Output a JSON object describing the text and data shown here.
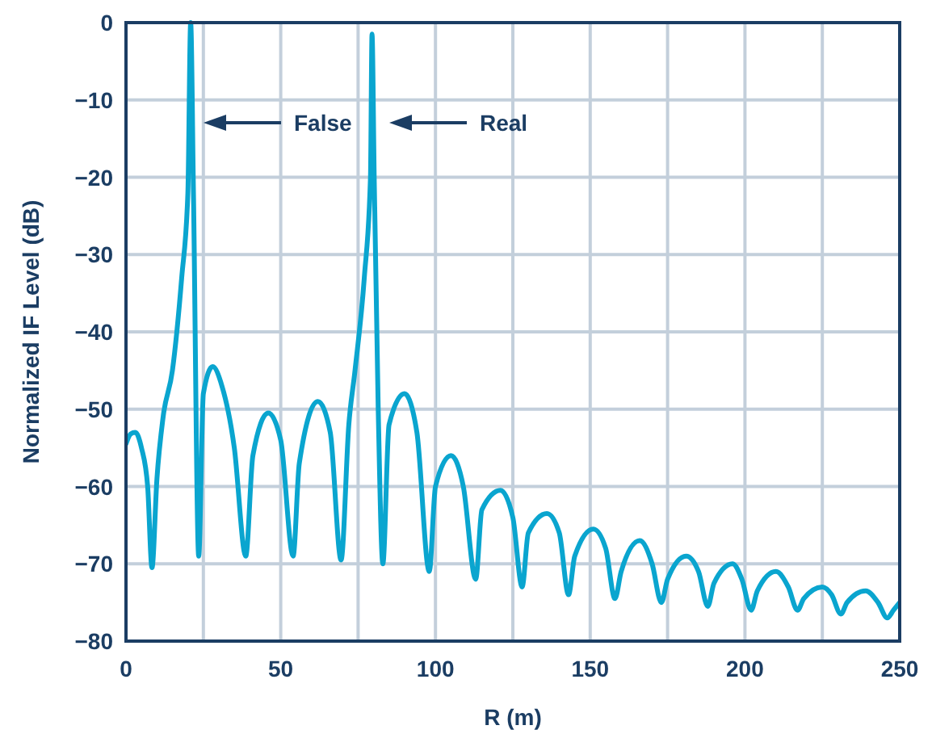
{
  "chart_data": {
    "type": "line",
    "xlabel": "R (m)",
    "ylabel": "Normalized IF Level (dB)",
    "xlim": [
      0,
      250
    ],
    "ylim": [
      -80,
      0
    ],
    "xticks": [
      0,
      {
        "value": 25,
        "label": null
      },
      50,
      {
        "value": 75,
        "label": null
      },
      100,
      {
        "value": 125,
        "label": null
      },
      150,
      {
        "value": 175,
        "label": null
      },
      200,
      {
        "value": 225,
        "label": null
      },
      250
    ],
    "yticks": [
      {
        "value": -80,
        "label": "−80"
      },
      {
        "value": -70,
        "label": "−70"
      },
      {
        "value": -60,
        "label": "−60"
      },
      {
        "value": -50,
        "label": "−50"
      },
      {
        "value": -40,
        "label": "−40"
      },
      {
        "value": -30,
        "label": "−30"
      },
      {
        "value": -20,
        "label": "−20"
      },
      {
        "value": -10,
        "label": "−10"
      },
      0
    ],
    "grid": true,
    "marker": "none",
    "line_style": "solid",
    "annotations": [
      "False",
      "Real"
    ],
    "series": [
      {
        "color": "#0aa5cf",
        "x": [
          0,
          1.5,
          3,
          5,
          7,
          8.4,
          10,
          12,
          15,
          18,
          20,
          20.9,
          21.8,
          23.5,
          25,
          28,
          31,
          35,
          38.7,
          41,
          46,
          50,
          54,
          56,
          62,
          66,
          69.5,
          72,
          74,
          77,
          79,
          79.5,
          80.2,
          81.5,
          83,
          85,
          90,
          94,
          98,
          100,
          105,
          109,
          113,
          115,
          121,
          125,
          128,
          130,
          136,
          140,
          143,
          145,
          151,
          155,
          158,
          160,
          166,
          170,
          173,
          175,
          181,
          185,
          188,
          190,
          196,
          199,
          202,
          204,
          210,
          214,
          217,
          219,
          225,
          228,
          231,
          233,
          239,
          243,
          246,
          248,
          250
        ],
        "values": [
          -54.5,
          -53.2,
          -53,
          -55,
          -60,
          -70.5,
          -59,
          -51,
          -45,
          -33,
          -22,
          0,
          -22,
          -69,
          -48,
          -44.5,
          -47,
          -55,
          -69,
          -56,
          -50.5,
          -54,
          -69,
          -57,
          -49,
          -53,
          -69.5,
          -52,
          -45,
          -33,
          -20,
          -1.5,
          -20,
          -50,
          -70,
          -52,
          -48,
          -53,
          -71,
          -60,
          -56,
          -60,
          -72,
          -63,
          -60.5,
          -64,
          -73,
          -66,
          -63.5,
          -66,
          -74,
          -69,
          -65.5,
          -68,
          -74.5,
          -71,
          -67,
          -70,
          -75,
          -72,
          -69,
          -71,
          -75.5,
          -72.5,
          -70,
          -72,
          -76,
          -73.5,
          -71,
          -73,
          -76,
          -74.5,
          -73,
          -74,
          -76.5,
          -75,
          -73.5,
          -75,
          -77,
          -76,
          -75
        ]
      }
    ]
  }
}
